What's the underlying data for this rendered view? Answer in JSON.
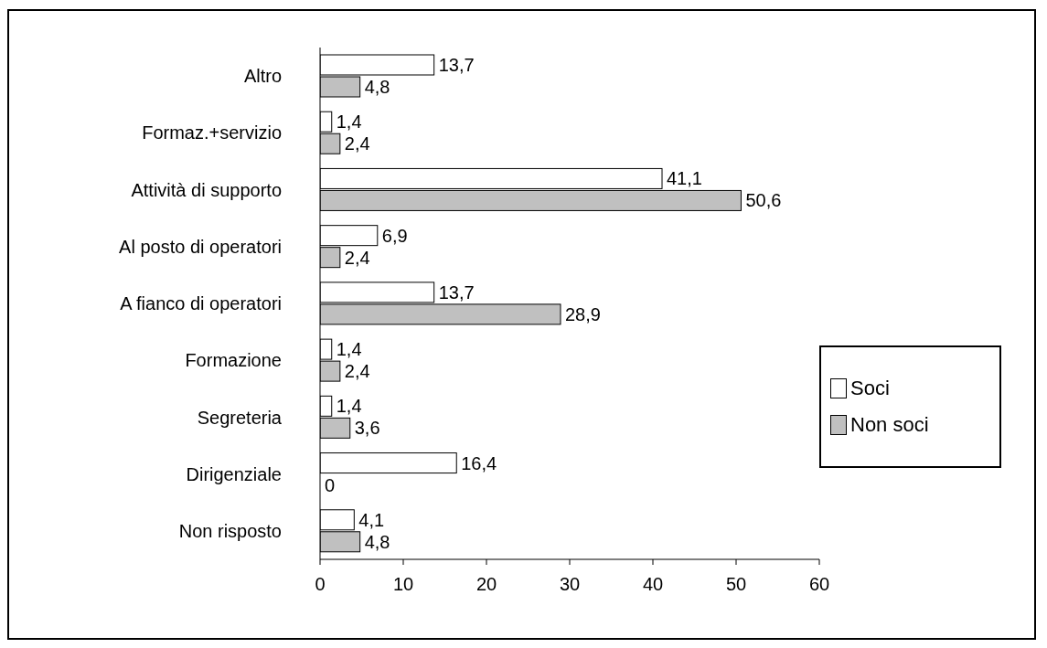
{
  "chart_data": {
    "type": "bar",
    "orientation": "horizontal",
    "categories": [
      "Altro",
      "Formaz.+servizio",
      "Attività di supporto",
      "Al posto di operatori",
      "A fianco di operatori",
      "Formazione",
      "Segreteria",
      "Dirigenziale",
      "Non risposto"
    ],
    "series": [
      {
        "name": "Soci",
        "color": "#ffffff",
        "values": [
          13.7,
          1.4,
          41.1,
          6.9,
          13.7,
          1.4,
          1.4,
          16.4,
          4.1
        ],
        "value_labels": [
          "13,7",
          "1,4",
          "41,1",
          "6,9",
          "13,7",
          "1,4",
          "1,4",
          "16,4",
          "4,1"
        ]
      },
      {
        "name": "Non soci",
        "color": "#c0c0c0",
        "values": [
          4.8,
          2.4,
          50.6,
          2.4,
          28.9,
          2.4,
          3.6,
          0,
          4.8
        ],
        "value_labels": [
          "4,8",
          "2,4",
          "50,6",
          "2,4",
          "28,9",
          "2,4",
          "3,6",
          "0",
          "4,8"
        ]
      }
    ],
    "xlim": [
      0,
      60
    ],
    "xticks": [
      0,
      10,
      20,
      30,
      40,
      50,
      60
    ],
    "grid": false,
    "legend": "right"
  }
}
